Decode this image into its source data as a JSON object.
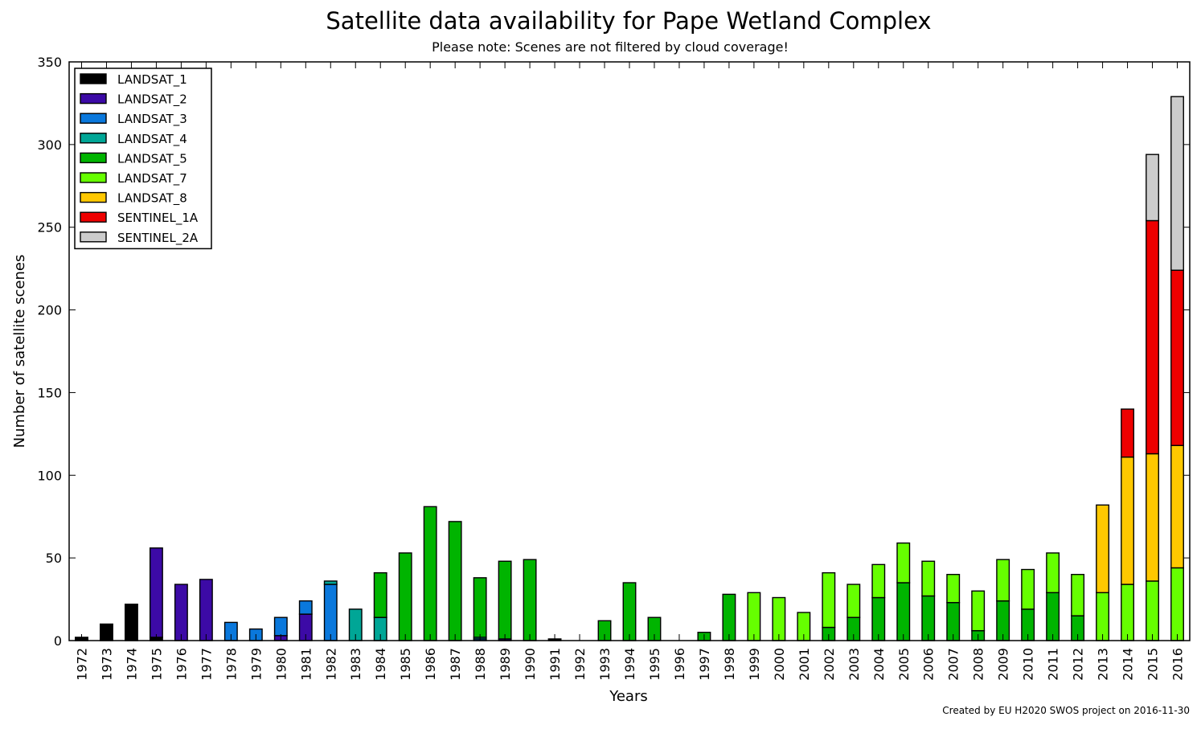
{
  "chart_data": {
    "type": "bar",
    "stacked": true,
    "title": "Satellite data availability for Pape Wetland Complex",
    "subtitle": "Please note: Scenes are not filtered by cloud coverage!",
    "xlabel": "Years",
    "ylabel": "Number of satellite scenes",
    "ylim": [
      0,
      350
    ],
    "yticks": [
      0,
      50,
      100,
      150,
      200,
      250,
      300,
      350
    ],
    "legend_position": "top-left",
    "grid": false,
    "credit": "Created by EU H2020 SWOS project on 2016-11-30",
    "categories": [
      "1972",
      "1973",
      "1974",
      "1975",
      "1976",
      "1977",
      "1978",
      "1979",
      "1980",
      "1981",
      "1982",
      "1983",
      "1984",
      "1985",
      "1986",
      "1987",
      "1988",
      "1989",
      "1990",
      "1991",
      "1992",
      "1993",
      "1994",
      "1995",
      "1996",
      "1997",
      "1998",
      "1999",
      "2000",
      "2001",
      "2002",
      "2003",
      "2004",
      "2005",
      "2006",
      "2007",
      "2008",
      "2009",
      "2010",
      "2011",
      "2012",
      "2013",
      "2014",
      "2015",
      "2016"
    ],
    "series": [
      {
        "name": "LANDSAT_1",
        "color": "#000000",
        "values": [
          2,
          10,
          22,
          2,
          0,
          0,
          0,
          0,
          0,
          0,
          0,
          0,
          0,
          0,
          0,
          0,
          0,
          0,
          0,
          1,
          0,
          0,
          0,
          0,
          0,
          0,
          0,
          0,
          0,
          0,
          0,
          0,
          0,
          0,
          0,
          0,
          0,
          0,
          0,
          0,
          0,
          0,
          0,
          0,
          0
        ]
      },
      {
        "name": "LANDSAT_2",
        "color": "#3c0aa6",
        "values": [
          0,
          0,
          0,
          54,
          34,
          37,
          0,
          0,
          3,
          16,
          0,
          0,
          0,
          0,
          0,
          0,
          0,
          1,
          0,
          0,
          0,
          0,
          0,
          0,
          0,
          0,
          0,
          0,
          0,
          0,
          0,
          0,
          0,
          0,
          0,
          0,
          0,
          0,
          0,
          0,
          0,
          0,
          0,
          0,
          0
        ]
      },
      {
        "name": "LANDSAT_3",
        "color": "#0a78dc",
        "values": [
          0,
          0,
          0,
          0,
          0,
          0,
          11,
          7,
          11,
          8,
          34,
          0,
          0,
          0,
          0,
          0,
          1,
          0,
          0,
          0,
          0,
          0,
          0,
          0,
          0,
          0,
          0,
          0,
          0,
          0,
          0,
          0,
          0,
          0,
          0,
          0,
          0,
          0,
          0,
          0,
          0,
          0,
          0,
          0,
          0
        ]
      },
      {
        "name": "LANDSAT_4",
        "color": "#00a696",
        "values": [
          0,
          0,
          0,
          0,
          0,
          0,
          0,
          0,
          0,
          0,
          2,
          19,
          14,
          0,
          0,
          0,
          1,
          0,
          0,
          0,
          0,
          0,
          0,
          0,
          0,
          0,
          0,
          0,
          0,
          0,
          0,
          0,
          0,
          0,
          0,
          0,
          0,
          0,
          0,
          0,
          0,
          0,
          0,
          0,
          0
        ]
      },
      {
        "name": "LANDSAT_5",
        "color": "#00b400",
        "values": [
          0,
          0,
          0,
          0,
          0,
          0,
          0,
          0,
          0,
          0,
          0,
          0,
          27,
          53,
          81,
          72,
          36,
          47,
          49,
          0,
          0,
          12,
          35,
          14,
          0,
          5,
          28,
          0,
          0,
          0,
          8,
          14,
          26,
          35,
          27,
          23,
          6,
          24,
          19,
          29,
          15,
          0,
          0,
          0,
          0
        ]
      },
      {
        "name": "LANDSAT_7",
        "color": "#66ff00",
        "values": [
          0,
          0,
          0,
          0,
          0,
          0,
          0,
          0,
          0,
          0,
          0,
          0,
          0,
          0,
          0,
          0,
          0,
          0,
          0,
          0,
          0,
          0,
          0,
          0,
          0,
          0,
          0,
          29,
          26,
          17,
          33,
          20,
          20,
          24,
          21,
          17,
          24,
          25,
          24,
          24,
          25,
          29,
          34,
          36,
          44
        ]
      },
      {
        "name": "LANDSAT_8",
        "color": "#ffc800",
        "values": [
          0,
          0,
          0,
          0,
          0,
          0,
          0,
          0,
          0,
          0,
          0,
          0,
          0,
          0,
          0,
          0,
          0,
          0,
          0,
          0,
          0,
          0,
          0,
          0,
          0,
          0,
          0,
          0,
          0,
          0,
          0,
          0,
          0,
          0,
          0,
          0,
          0,
          0,
          0,
          0,
          0,
          53,
          77,
          77,
          74
        ]
      },
      {
        "name": "SENTINEL_1A",
        "color": "#ee0000",
        "values": [
          0,
          0,
          0,
          0,
          0,
          0,
          0,
          0,
          0,
          0,
          0,
          0,
          0,
          0,
          0,
          0,
          0,
          0,
          0,
          0,
          0,
          0,
          0,
          0,
          0,
          0,
          0,
          0,
          0,
          0,
          0,
          0,
          0,
          0,
          0,
          0,
          0,
          0,
          0,
          0,
          0,
          0,
          29,
          141,
          106
        ]
      },
      {
        "name": "SENTINEL_2A",
        "color": "#cccccc",
        "values": [
          0,
          0,
          0,
          0,
          0,
          0,
          0,
          0,
          0,
          0,
          0,
          0,
          0,
          0,
          0,
          0,
          0,
          0,
          0,
          0,
          0,
          0,
          0,
          0,
          0,
          0,
          0,
          0,
          0,
          0,
          0,
          0,
          0,
          0,
          0,
          0,
          0,
          0,
          0,
          0,
          0,
          0,
          0,
          40,
          105
        ]
      }
    ]
  }
}
